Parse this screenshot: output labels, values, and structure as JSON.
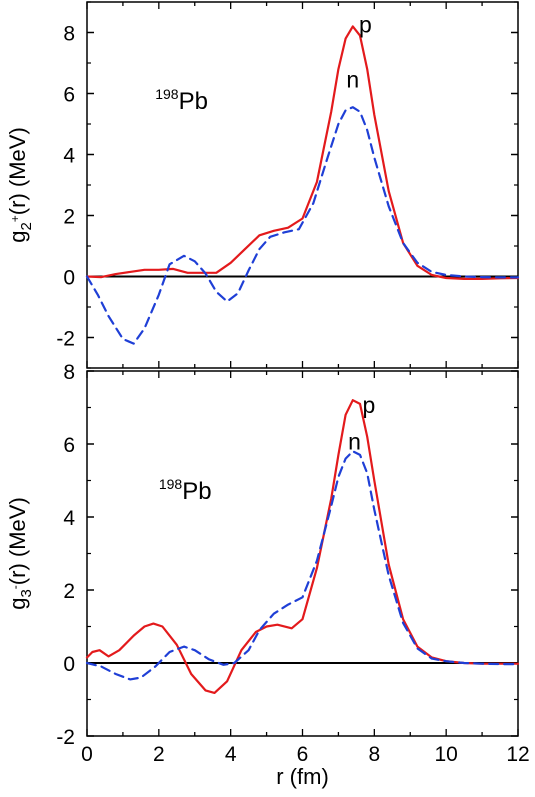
{
  "chart_data": [
    {
      "type": "line",
      "ylabel_main": "g",
      "ylabel_sub": "2",
      "ylabel_sup": "+",
      "ylabel_tail": "(r) (MeV)",
      "nucleus_mass": "198",
      "nucleus_symbol": "Pb",
      "ylim": [
        -3,
        9
      ],
      "xlim": [
        0,
        12
      ],
      "yticks": [
        -2,
        0,
        2,
        4,
        6,
        8
      ],
      "ytick_labels": [
        "-2",
        "0",
        "2",
        "4",
        "6",
        "8"
      ],
      "grid": false,
      "series": [
        {
          "name": "p",
          "color": "#e31a1c",
          "style": "solid",
          "x": [
            0,
            0.4,
            0.8,
            1.2,
            1.6,
            2.0,
            2.4,
            2.8,
            3.2,
            3.6,
            4.0,
            4.4,
            4.8,
            5.2,
            5.6,
            6.0,
            6.4,
            6.8,
            7.0,
            7.2,
            7.4,
            7.6,
            7.8,
            8.0,
            8.4,
            8.8,
            9.2,
            9.6,
            10.0,
            10.5,
            11.0,
            11.5,
            12.0
          ],
          "y": [
            0.0,
            -0.02,
            0.08,
            0.15,
            0.22,
            0.22,
            0.25,
            0.12,
            0.12,
            0.12,
            0.45,
            0.9,
            1.35,
            1.5,
            1.6,
            1.9,
            3.1,
            5.4,
            6.8,
            7.8,
            8.2,
            7.9,
            6.8,
            5.3,
            2.8,
            1.1,
            0.35,
            0.05,
            -0.05,
            -0.08,
            -0.08,
            -0.06,
            -0.05
          ]
        },
        {
          "name": "n",
          "color": "#1f3fd6",
          "style": "dashed",
          "x": [
            0,
            0.3,
            0.6,
            1.0,
            1.3,
            1.6,
            2.0,
            2.3,
            2.7,
            3.0,
            3.3,
            3.6,
            3.9,
            4.2,
            4.5,
            4.8,
            5.1,
            5.5,
            5.9,
            6.3,
            6.7,
            7.0,
            7.2,
            7.4,
            7.6,
            7.8,
            8.0,
            8.4,
            8.8,
            9.2,
            9.6,
            10.0,
            10.5,
            11.0,
            11.5,
            12.0
          ],
          "y": [
            0.0,
            -0.6,
            -1.3,
            -2.05,
            -2.2,
            -1.7,
            -0.6,
            0.4,
            0.68,
            0.5,
            0.1,
            -0.5,
            -0.82,
            -0.55,
            0.2,
            0.9,
            1.3,
            1.45,
            1.55,
            2.4,
            3.9,
            5.0,
            5.45,
            5.55,
            5.4,
            4.8,
            3.9,
            2.3,
            1.1,
            0.45,
            0.15,
            0.05,
            0.0,
            -0.02,
            -0.03,
            -0.03
          ]
        }
      ]
    },
    {
      "type": "line",
      "ylabel_main": "g",
      "ylabel_sub": "3",
      "ylabel_sup": "-",
      "ylabel_tail": "(r) (MeV)",
      "nucleus_mass": "198",
      "nucleus_symbol": "Pb",
      "xlabel": "r (fm)",
      "ylim": [
        -2,
        8
      ],
      "xlim": [
        0,
        12
      ],
      "xticks": [
        0,
        2,
        4,
        6,
        8,
        10,
        12
      ],
      "xtick_labels": [
        "0",
        "2",
        "4",
        "6",
        "8",
        "10",
        "12"
      ],
      "yticks": [
        -2,
        0,
        2,
        4,
        6,
        8
      ],
      "ytick_labels": [
        "-2",
        "0",
        "2",
        "4",
        "6",
        "8"
      ],
      "grid": false,
      "series": [
        {
          "name": "p",
          "color": "#e31a1c",
          "style": "solid",
          "x": [
            0,
            0.15,
            0.35,
            0.6,
            0.9,
            1.3,
            1.6,
            1.85,
            2.1,
            2.5,
            2.9,
            3.3,
            3.55,
            3.9,
            4.3,
            4.7,
            5.0,
            5.3,
            5.7,
            6.0,
            6.4,
            6.8,
            7.0,
            7.2,
            7.4,
            7.6,
            7.8,
            8.0,
            8.4,
            8.8,
            9.2,
            9.6,
            10.0,
            10.5,
            11.0,
            11.5,
            12.0
          ],
          "y": [
            0.15,
            0.3,
            0.35,
            0.18,
            0.35,
            0.75,
            1.0,
            1.08,
            1.0,
            0.5,
            -0.3,
            -0.75,
            -0.82,
            -0.5,
            0.35,
            0.85,
            1.0,
            1.05,
            0.95,
            1.2,
            2.6,
            4.5,
            5.7,
            6.8,
            7.2,
            7.1,
            6.2,
            5.0,
            2.7,
            1.2,
            0.45,
            0.15,
            0.05,
            0.0,
            -0.02,
            -0.02,
            -0.02
          ]
        },
        {
          "name": "n",
          "color": "#1f3fd6",
          "style": "dashed",
          "x": [
            0,
            0.4,
            0.8,
            1.2,
            1.5,
            1.9,
            2.3,
            2.7,
            3.0,
            3.4,
            3.8,
            4.1,
            4.5,
            4.8,
            5.2,
            5.6,
            6.0,
            6.4,
            6.8,
            7.0,
            7.2,
            7.4,
            7.6,
            7.8,
            8.0,
            8.4,
            8.8,
            9.2,
            9.6,
            10.0,
            10.5,
            11.0,
            11.5,
            12.0
          ],
          "y": [
            0.0,
            -0.1,
            -0.3,
            -0.45,
            -0.4,
            -0.1,
            0.3,
            0.45,
            0.35,
            0.1,
            -0.05,
            0.0,
            0.35,
            0.9,
            1.35,
            1.6,
            1.8,
            2.8,
            4.3,
            5.1,
            5.6,
            5.8,
            5.7,
            5.2,
            4.2,
            2.4,
            1.1,
            0.4,
            0.12,
            0.05,
            0.0,
            -0.02,
            -0.03,
            -0.03
          ]
        }
      ]
    }
  ]
}
